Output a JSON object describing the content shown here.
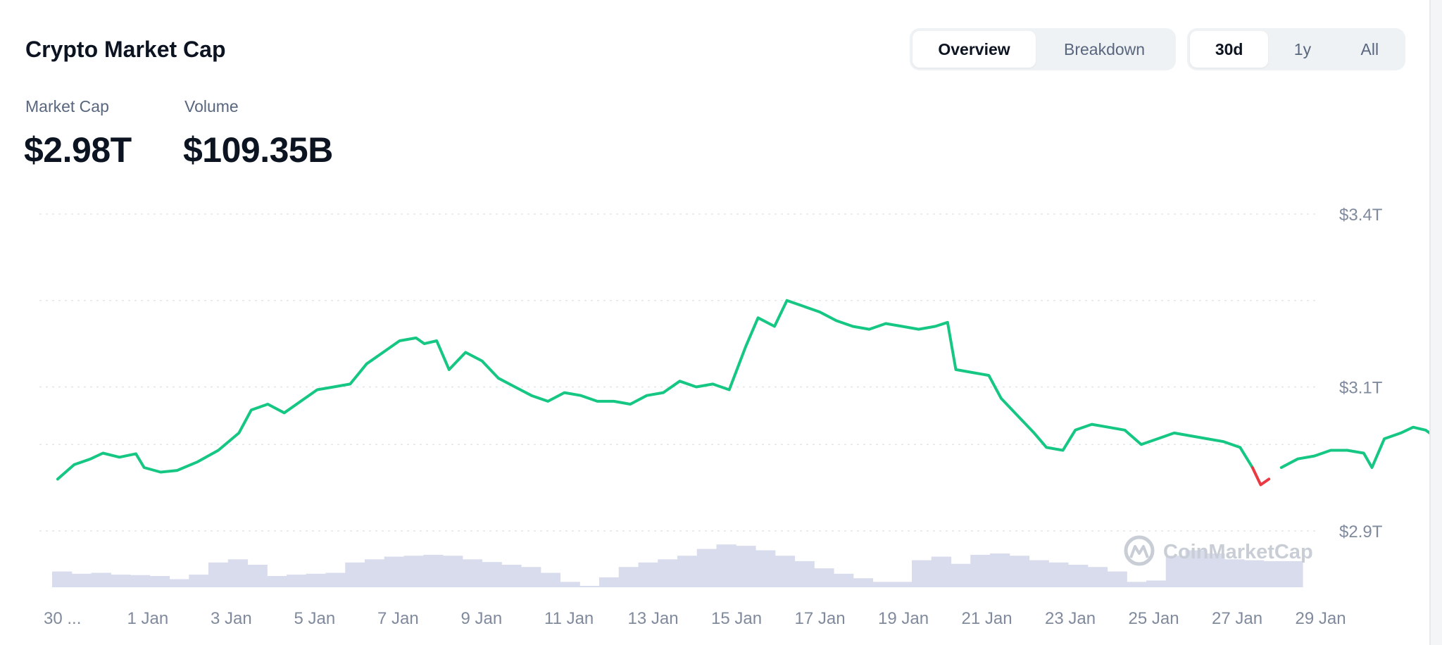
{
  "header": {
    "title": "Crypto Market Cap",
    "view_tabs": [
      {
        "label": "Overview",
        "active": true
      },
      {
        "label": "Breakdown",
        "active": false
      }
    ],
    "range_tabs": [
      {
        "label": "30d",
        "active": true
      },
      {
        "label": "1y",
        "active": false
      },
      {
        "label": "All",
        "active": false
      }
    ]
  },
  "stats": {
    "market_cap_label": "Market Cap",
    "market_cap_value": "$2.98T",
    "volume_label": "Volume",
    "volume_value": "$109.35B"
  },
  "watermark": {
    "text": "CoinMarketCap",
    "icon": "coinmarketcap-logo-icon"
  },
  "colors": {
    "line_up": "#16c784",
    "line_down": "#ea3943",
    "volume": "#d9dcec",
    "grid": "#e3e6ea"
  },
  "chart_data": {
    "type": "line",
    "title": "Crypto Market Cap",
    "x_tick_labels": [
      "30 ...",
      "1 Jan",
      "3 Jan",
      "5 Jan",
      "7 Jan",
      "9 Jan",
      "11 Jan",
      "13 Jan",
      "15 Jan",
      "17 Jan",
      "19 Jan",
      "21 Jan",
      "23 Jan",
      "25 Jan",
      "27 Jan",
      "29 Jan"
    ],
    "x_tick_day": [
      0,
      2,
      4,
      6,
      8,
      10,
      12,
      14,
      16,
      18,
      20,
      22,
      24,
      26,
      28,
      30
    ],
    "y_gridlines": [
      3.4,
      3.25,
      3.1,
      3.0,
      2.85
    ],
    "y_tick_labels": [
      {
        "value": 3.4,
        "label": "$3.4T"
      },
      {
        "value": 3.1,
        "label": "$3.1T"
      },
      {
        "value": 2.85,
        "label": "$2.9T"
      }
    ],
    "ylim": [
      2.85,
      3.4
    ],
    "x_unit": "days since 30 Dec",
    "series": [
      {
        "points": [
          [
            0.1,
            2.94
          ],
          [
            0.5,
            2.965
          ],
          [
            0.9,
            2.975
          ],
          [
            1.2,
            2.985
          ],
          [
            1.6,
            2.978
          ],
          [
            2.0,
            2.984
          ],
          [
            2.2,
            2.96
          ],
          [
            2.6,
            2.952
          ],
          [
            3.0,
            2.955
          ],
          [
            3.5,
            2.97
          ],
          [
            4.0,
            2.99
          ],
          [
            4.5,
            3.02
          ],
          [
            4.8,
            3.06
          ],
          [
            5.2,
            3.07
          ],
          [
            5.6,
            3.055
          ],
          [
            6.0,
            3.075
          ],
          [
            6.4,
            3.095
          ],
          [
            6.8,
            3.1
          ],
          [
            7.2,
            3.105
          ],
          [
            7.6,
            3.14
          ],
          [
            8.0,
            3.16
          ],
          [
            8.4,
            3.18
          ],
          [
            8.8,
            3.185
          ],
          [
            9.0,
            3.175
          ],
          [
            9.3,
            3.18
          ],
          [
            9.6,
            3.13
          ],
          [
            10.0,
            3.16
          ],
          [
            10.4,
            3.145
          ],
          [
            10.8,
            3.115
          ],
          [
            11.2,
            3.1
          ],
          [
            11.6,
            3.085
          ],
          [
            12.0,
            3.075
          ],
          [
            12.4,
            3.09
          ],
          [
            12.8,
            3.085
          ],
          [
            13.2,
            3.075
          ],
          [
            13.6,
            3.075
          ],
          [
            14.0,
            3.07
          ],
          [
            14.4,
            3.085
          ],
          [
            14.8,
            3.09
          ],
          [
            15.2,
            3.11
          ],
          [
            15.6,
            3.1
          ],
          [
            16.0,
            3.105
          ],
          [
            16.4,
            3.095
          ],
          [
            16.8,
            3.17
          ],
          [
            17.1,
            3.22
          ],
          [
            17.5,
            3.205
          ],
          [
            17.8,
            3.25
          ],
          [
            18.2,
            3.24
          ],
          [
            18.6,
            3.23
          ],
          [
            19.0,
            3.215
          ],
          [
            19.4,
            3.205
          ],
          [
            19.8,
            3.2
          ],
          [
            20.2,
            3.21
          ],
          [
            20.6,
            3.205
          ],
          [
            21.0,
            3.2
          ],
          [
            21.4,
            3.205
          ],
          [
            21.7,
            3.212
          ],
          [
            21.9,
            3.13
          ],
          [
            22.3,
            3.125
          ],
          [
            22.7,
            3.12
          ],
          [
            23.0,
            3.08
          ],
          [
            23.4,
            3.05
          ],
          [
            23.8,
            3.02
          ],
          [
            24.1,
            2.995
          ],
          [
            24.5,
            2.99
          ],
          [
            24.8,
            3.025
          ],
          [
            25.2,
            3.035
          ],
          [
            25.6,
            3.03
          ],
          [
            26.0,
            3.025
          ],
          [
            26.4,
            3.0
          ],
          [
            26.8,
            3.01
          ],
          [
            27.2,
            3.02
          ],
          [
            27.6,
            3.015
          ],
          [
            28.0,
            3.01
          ],
          [
            28.4,
            3.005
          ],
          [
            28.8,
            2.995
          ],
          [
            29.1,
            2.96
          ],
          [
            29.3,
            2.93
          ],
          [
            29.5,
            2.94
          ],
          [
            29.8,
            2.96
          ],
          [
            30.2,
            2.975
          ],
          [
            30.6,
            2.98
          ],
          [
            31.0,
            2.99
          ],
          [
            31.4,
            2.99
          ],
          [
            31.8,
            2.985
          ],
          [
            32.0,
            2.96
          ],
          [
            32.3,
            3.01
          ],
          [
            32.7,
            3.02
          ],
          [
            33.0,
            3.03
          ],
          [
            33.3,
            3.025
          ],
          [
            33.6,
            3.01
          ],
          [
            33.8,
            2.98
          ]
        ]
      }
    ],
    "red_segment_days": [
      29.1,
      29.6
    ],
    "volume_series": [
      0.35,
      0.3,
      0.32,
      0.28,
      0.27,
      0.25,
      0.18,
      0.28,
      0.55,
      0.62,
      0.5,
      0.25,
      0.28,
      0.3,
      0.32,
      0.55,
      0.62,
      0.68,
      0.7,
      0.72,
      0.7,
      0.62,
      0.56,
      0.5,
      0.45,
      0.32,
      0.12,
      0.0,
      0.22,
      0.45,
      0.55,
      0.62,
      0.7,
      0.85,
      0.95,
      0.92,
      0.82,
      0.7,
      0.58,
      0.42,
      0.3,
      0.2,
      0.12,
      0.12,
      0.6,
      0.68,
      0.52,
      0.72,
      0.75,
      0.7,
      0.6,
      0.55,
      0.5,
      0.45,
      0.35,
      0.12,
      0.15,
      0.7,
      0.82,
      0.75,
      0.62,
      0.6,
      0.58,
      0.58
    ]
  }
}
